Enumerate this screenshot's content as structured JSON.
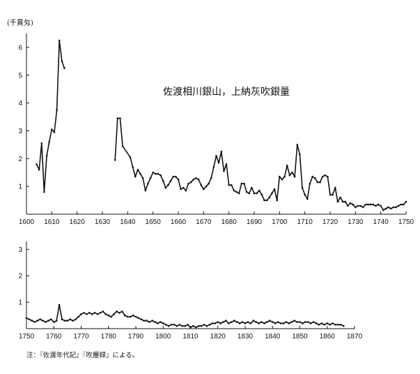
{
  "chart_data": [
    {
      "type": "line",
      "title": "佐渡相川銀山，上納灰吹銀量",
      "ylabel": "(千貫匁)",
      "xlim": [
        1600,
        1750
      ],
      "ylim": [
        0,
        6.5
      ],
      "xticks": [
        1600,
        1610,
        1620,
        1630,
        1640,
        1650,
        1660,
        1670,
        1680,
        1690,
        1700,
        1710,
        1720,
        1730,
        1740,
        1750
      ],
      "yticks": [
        1,
        2,
        3,
        4,
        5,
        6
      ],
      "grid": false,
      "series": [
        {
          "segments": [
            [
              [
                1604,
                1.8
              ],
              [
                1605,
                1.6
              ],
              [
                1606,
                2.55
              ],
              [
                1607,
                0.8
              ],
              [
                1608,
                2.1
              ],
              [
                1609,
                2.6
              ],
              [
                1610,
                3.05
              ],
              [
                1611,
                2.95
              ],
              [
                1612,
                3.75
              ],
              [
                1613,
                6.25
              ],
              [
                1614,
                5.5
              ],
              [
                1615,
                5.25
              ]
            ],
            [
              [
                1635,
                1.95
              ],
              [
                1636,
                3.45
              ],
              [
                1637,
                3.45
              ],
              [
                1638,
                2.45
              ],
              [
                1641,
                2.05
              ],
              [
                1642,
                1.7
              ],
              [
                1643,
                1.35
              ],
              [
                1644,
                1.6
              ],
              [
                1645,
                1.45
              ],
              [
                1646,
                1.3
              ],
              [
                1647,
                0.85
              ],
              [
                1648,
                1.1
              ],
              [
                1649,
                1.3
              ],
              [
                1650,
                1.5
              ],
              [
                1651,
                1.45
              ],
              [
                1652,
                1.45
              ],
              [
                1653,
                1.4
              ],
              [
                1654,
                1.2
              ],
              [
                1655,
                0.95
              ],
              [
                1656,
                1.05
              ],
              [
                1657,
                1.2
              ],
              [
                1658,
                1.35
              ],
              [
                1659,
                1.35
              ],
              [
                1660,
                1.25
              ],
              [
                1661,
                0.9
              ],
              [
                1662,
                0.95
              ],
              [
                1663,
                0.85
              ],
              [
                1664,
                1.1
              ],
              [
                1665,
                1.15
              ],
              [
                1666,
                1.25
              ],
              [
                1667,
                1.3
              ],
              [
                1668,
                1.25
              ],
              [
                1669,
                1.05
              ],
              [
                1670,
                0.9
              ],
              [
                1671,
                1.0
              ],
              [
                1672,
                1.1
              ],
              [
                1673,
                1.3
              ],
              [
                1674,
                1.7
              ],
              [
                1675,
                2.1
              ],
              [
                1676,
                1.85
              ],
              [
                1677,
                2.25
              ],
              [
                1678,
                1.55
              ],
              [
                1679,
                1.8
              ],
              [
                1680,
                1.05
              ],
              [
                1681,
                1.05
              ],
              [
                1682,
                0.85
              ],
              [
                1683,
                0.8
              ],
              [
                1684,
                0.75
              ],
              [
                1685,
                1.1
              ],
              [
                1686,
                1.1
              ],
              [
                1687,
                0.8
              ],
              [
                1688,
                0.75
              ],
              [
                1689,
                0.95
              ],
              [
                1690,
                0.75
              ],
              [
                1691,
                0.75
              ],
              [
                1692,
                0.85
              ],
              [
                1693,
                0.7
              ],
              [
                1694,
                0.5
              ],
              [
                1695,
                0.5
              ],
              [
                1696,
                0.6
              ],
              [
                1697,
                0.75
              ],
              [
                1698,
                0.9
              ],
              [
                1699,
                0.5
              ],
              [
                1700,
                1.35
              ],
              [
                1701,
                1.25
              ],
              [
                1702,
                1.35
              ],
              [
                1703,
                1.75
              ],
              [
                1704,
                1.4
              ],
              [
                1705,
                1.5
              ],
              [
                1706,
                1.35
              ],
              [
                1707,
                2.5
              ],
              [
                1708,
                2.15
              ],
              [
                1709,
                0.95
              ],
              [
                1710,
                0.7
              ],
              [
                1711,
                0.55
              ],
              [
                1712,
                1.1
              ],
              [
                1713,
                1.35
              ],
              [
                1714,
                1.3
              ],
              [
                1715,
                1.15
              ],
              [
                1716,
                1.15
              ],
              [
                1717,
                1.35
              ],
              [
                1718,
                1.4
              ],
              [
                1719,
                1.35
              ],
              [
                1720,
                0.7
              ],
              [
                1721,
                0.7
              ],
              [
                1722,
                0.95
              ],
              [
                1723,
                0.45
              ],
              [
                1724,
                0.6
              ],
              [
                1725,
                0.45
              ],
              [
                1726,
                0.45
              ],
              [
                1727,
                0.3
              ],
              [
                1728,
                0.4
              ],
              [
                1729,
                0.35
              ],
              [
                1730,
                0.25
              ],
              [
                1731,
                0.3
              ],
              [
                1732,
                0.3
              ],
              [
                1733,
                0.25
              ],
              [
                1734,
                0.35
              ],
              [
                1735,
                0.35
              ],
              [
                1736,
                0.35
              ],
              [
                1737,
                0.35
              ],
              [
                1738,
                0.3
              ],
              [
                1739,
                0.35
              ],
              [
                1740,
                0.3
              ],
              [
                1741,
                0.15
              ],
              [
                1742,
                0.2
              ],
              [
                1743,
                0.25
              ],
              [
                1744,
                0.2
              ],
              [
                1745,
                0.25
              ],
              [
                1746,
                0.25
              ],
              [
                1747,
                0.3
              ],
              [
                1748,
                0.35
              ],
              [
                1749,
                0.35
              ],
              [
                1750,
                0.45
              ]
            ]
          ]
        }
      ]
    },
    {
      "type": "line",
      "xlim": [
        1750,
        1870
      ],
      "ylim": [
        0,
        3.3
      ],
      "xticks": [
        1750,
        1760,
        1770,
        1780,
        1790,
        1800,
        1810,
        1820,
        1830,
        1840,
        1850,
        1860,
        1870
      ],
      "yticks": [
        1,
        2,
        3
      ],
      "grid": false,
      "series": [
        {
          "segments": [
            [
              [
                1750,
                0.4
              ],
              [
                1751,
                0.35
              ],
              [
                1752,
                0.3
              ],
              [
                1753,
                0.25
              ],
              [
                1754,
                0.3
              ],
              [
                1755,
                0.35
              ],
              [
                1756,
                0.3
              ],
              [
                1757,
                0.25
              ],
              [
                1758,
                0.3
              ],
              [
                1759,
                0.35
              ],
              [
                1760,
                0.25
              ],
              [
                1761,
                0.3
              ],
              [
                1762,
                0.9
              ],
              [
                1763,
                0.35
              ],
              [
                1764,
                0.3
              ],
              [
                1765,
                0.3
              ],
              [
                1766,
                0.35
              ],
              [
                1767,
                0.3
              ],
              [
                1768,
                0.35
              ],
              [
                1769,
                0.45
              ],
              [
                1770,
                0.55
              ],
              [
                1771,
                0.6
              ],
              [
                1772,
                0.55
              ],
              [
                1773,
                0.6
              ],
              [
                1774,
                0.55
              ],
              [
                1775,
                0.6
              ],
              [
                1776,
                0.55
              ],
              [
                1777,
                0.6
              ],
              [
                1778,
                0.65
              ],
              [
                1779,
                0.55
              ],
              [
                1780,
                0.5
              ],
              [
                1781,
                0.45
              ],
              [
                1782,
                0.55
              ],
              [
                1783,
                0.65
              ],
              [
                1784,
                0.6
              ],
              [
                1785,
                0.65
              ],
              [
                1786,
                0.5
              ],
              [
                1787,
                0.45
              ],
              [
                1788,
                0.45
              ],
              [
                1789,
                0.5
              ],
              [
                1790,
                0.45
              ],
              [
                1791,
                0.4
              ],
              [
                1792,
                0.35
              ],
              [
                1793,
                0.3
              ],
              [
                1794,
                0.3
              ],
              [
                1795,
                0.25
              ],
              [
                1796,
                0.3
              ],
              [
                1797,
                0.25
              ],
              [
                1798,
                0.2
              ],
              [
                1799,
                0.25
              ],
              [
                1800,
                0.2
              ],
              [
                1801,
                0.15
              ],
              [
                1802,
                0.1
              ],
              [
                1803,
                0.15
              ],
              [
                1804,
                0.15
              ],
              [
                1805,
                0.1
              ],
              [
                1806,
                0.15
              ],
              [
                1807,
                0.1
              ],
              [
                1808,
                0.1
              ],
              [
                1809,
                0.15
              ],
              [
                1810,
                0.05
              ],
              [
                1811,
                0.1
              ],
              [
                1812,
                0.05
              ],
              [
                1813,
                0.1
              ],
              [
                1814,
                0.1
              ],
              [
                1815,
                0.15
              ],
              [
                1816,
                0.1
              ],
              [
                1817,
                0.15
              ],
              [
                1818,
                0.2
              ],
              [
                1819,
                0.2
              ],
              [
                1820,
                0.25
              ],
              [
                1821,
                0.2
              ],
              [
                1822,
                0.25
              ],
              [
                1823,
                0.3
              ],
              [
                1824,
                0.2
              ],
              [
                1825,
                0.25
              ],
              [
                1826,
                0.3
              ],
              [
                1827,
                0.25
              ],
              [
                1828,
                0.2
              ],
              [
                1829,
                0.25
              ],
              [
                1830,
                0.2
              ],
              [
                1831,
                0.25
              ],
              [
                1832,
                0.2
              ],
              [
                1833,
                0.3
              ],
              [
                1834,
                0.25
              ],
              [
                1835,
                0.2
              ],
              [
                1836,
                0.25
              ],
              [
                1837,
                0.2
              ],
              [
                1838,
                0.25
              ],
              [
                1839,
                0.3
              ],
              [
                1840,
                0.25
              ],
              [
                1841,
                0.2
              ],
              [
                1842,
                0.25
              ],
              [
                1843,
                0.2
              ],
              [
                1844,
                0.2
              ],
              [
                1845,
                0.25
              ],
              [
                1846,
                0.2
              ],
              [
                1847,
                0.25
              ],
              [
                1848,
                0.3
              ],
              [
                1849,
                0.25
              ],
              [
                1850,
                0.25
              ],
              [
                1851,
                0.2
              ],
              [
                1852,
                0.25
              ],
              [
                1853,
                0.25
              ],
              [
                1854,
                0.2
              ],
              [
                1855,
                0.25
              ],
              [
                1856,
                0.2
              ],
              [
                1857,
                0.15
              ],
              [
                1858,
                0.2
              ],
              [
                1859,
                0.15
              ],
              [
                1860,
                0.2
              ],
              [
                1861,
                0.15
              ],
              [
                1862,
                0.2
              ],
              [
                1863,
                0.15
              ],
              [
                1864,
                0.15
              ],
              [
                1865,
                0.15
              ],
              [
                1866,
                0.1
              ]
            ]
          ]
        }
      ]
    }
  ],
  "note": "注：『佐渡年代記』『吹塵録』による。",
  "line_color": "#111111"
}
